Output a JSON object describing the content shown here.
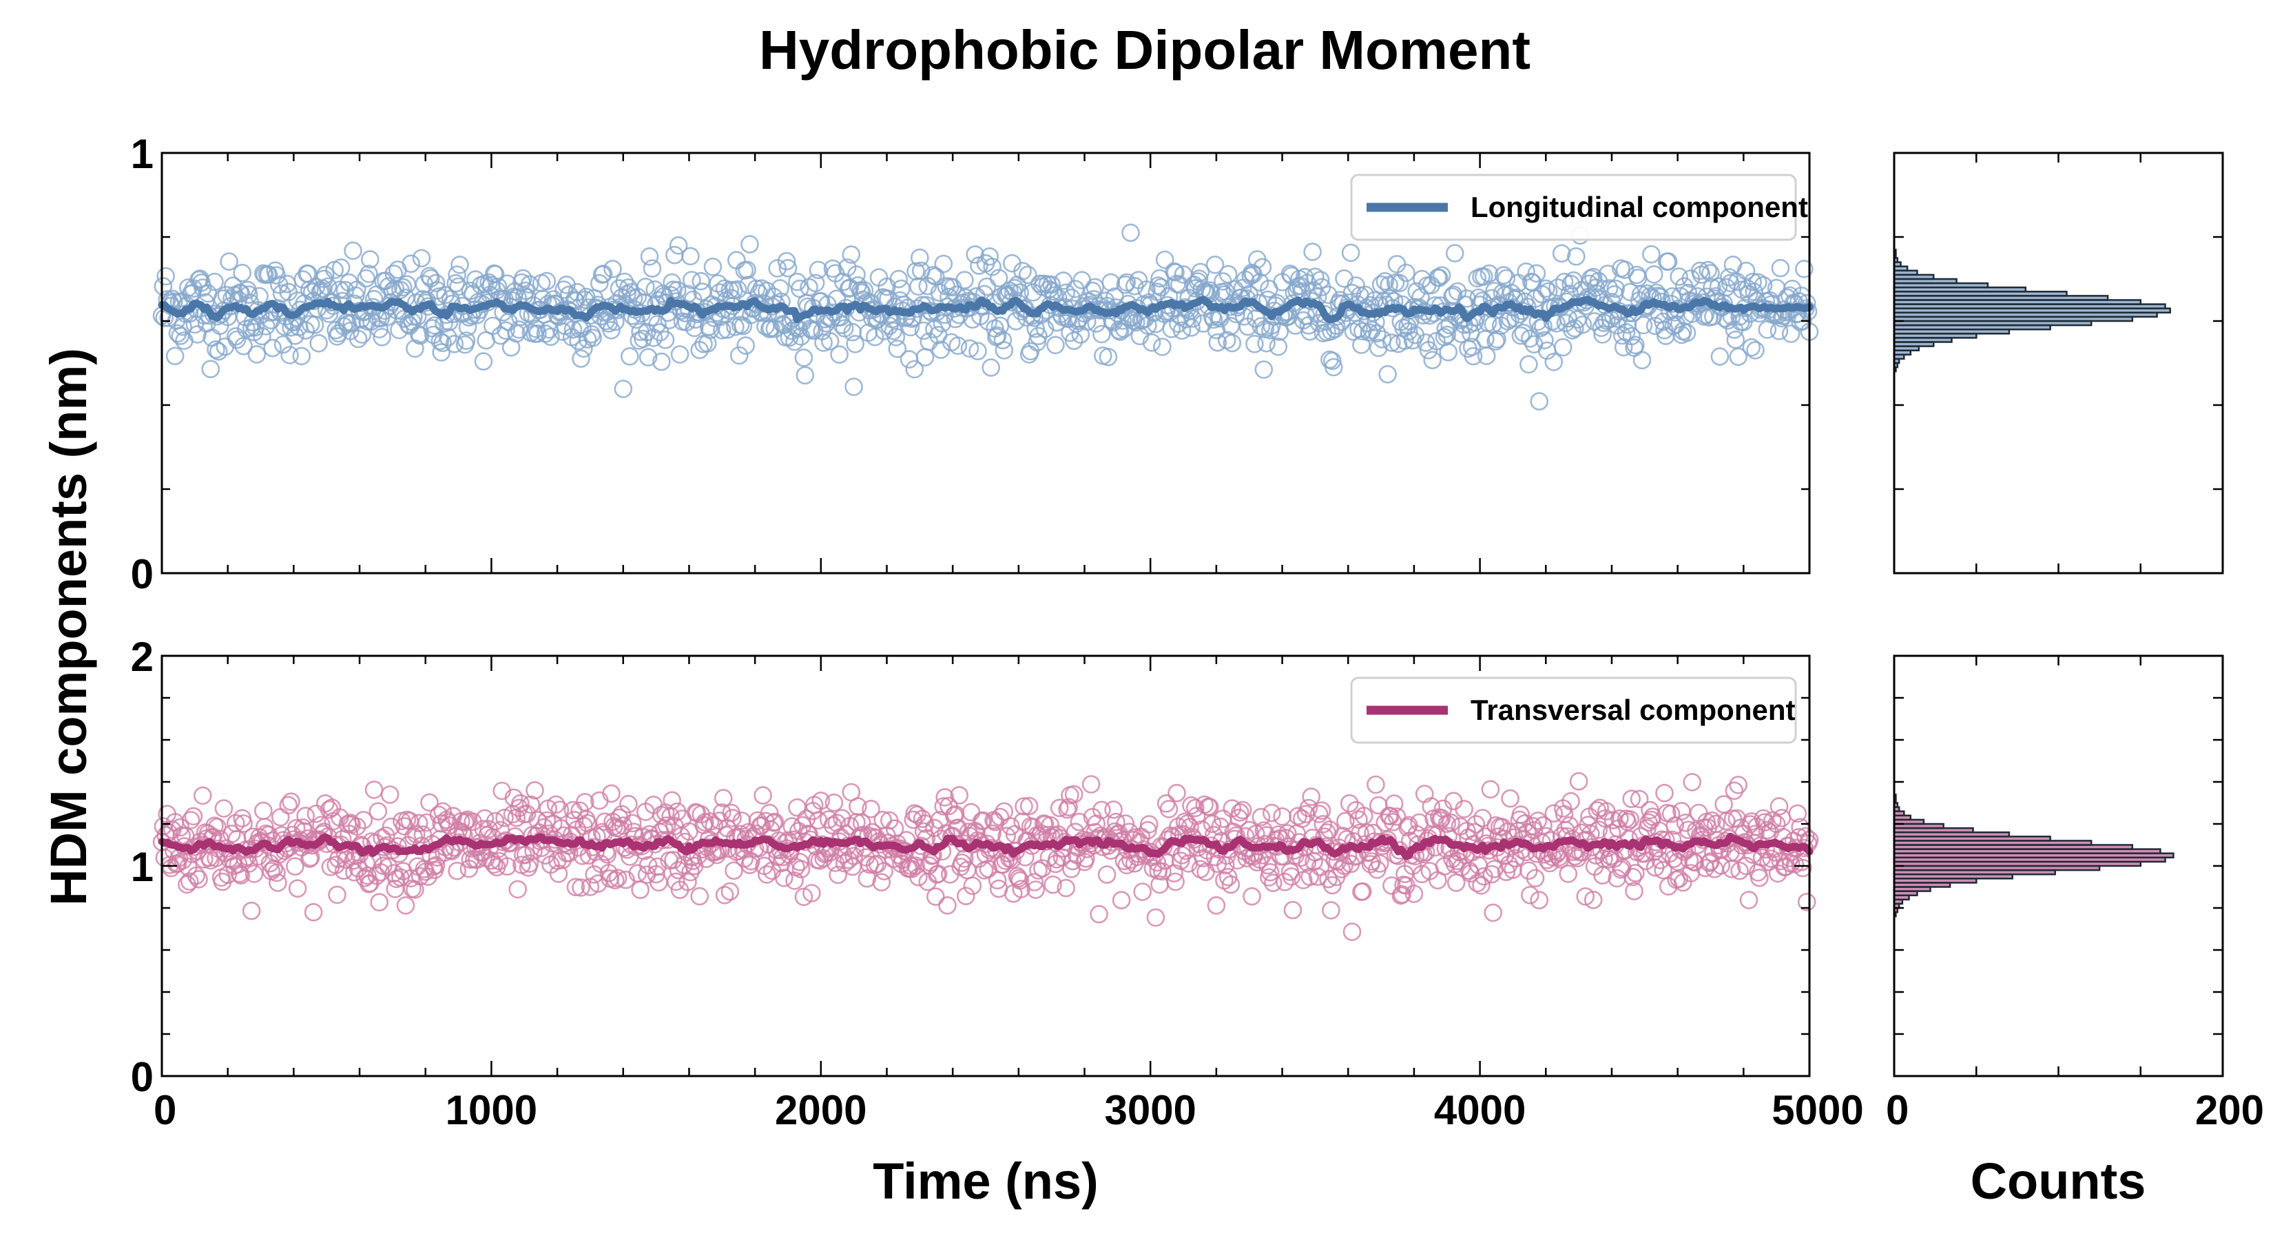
{
  "chart_data": {
    "type": "scatter",
    "title": "Hydrophobic Dipolar Moment",
    "ylabel": "HDM components (nm)",
    "xlabel": "Time (ns)",
    "hist_xlabel": "Counts",
    "xlim": [
      0,
      5000
    ],
    "x_ticks": [
      "0",
      "1000",
      "2000",
      "3000",
      "4000",
      "5000"
    ],
    "hist_xlim": [
      0,
      200
    ],
    "hist_x_ticks": [
      "0",
      "200"
    ],
    "point_step_ns": 4,
    "panels": [
      {
        "name": "Longitudinal component",
        "legend_label": "Longitudinal component",
        "color": "#4a77a8",
        "marker_color": "#86a8cc",
        "ylim": [
          0,
          1
        ],
        "y_ticks": [
          "0",
          "1"
        ],
        "mean": 0.63,
        "scatter_std": 0.055,
        "running_mean_std": 0.013,
        "histogram": {
          "bin_start": 0.48,
          "bin_width": 0.01,
          "counts": [
            1,
            2,
            3,
            6,
            10,
            15,
            24,
            35,
            50,
            70,
            95,
            120,
            145,
            160,
            168,
            165,
            150,
            130,
            105,
            80,
            57,
            38,
            24,
            14,
            8,
            4,
            2,
            1,
            1
          ]
        }
      },
      {
        "name": "Transversal component",
        "legend_label": "Transversal component",
        "color": "#a83272",
        "marker_color": "#cf7ea6",
        "ylim": [
          0,
          2
        ],
        "y_ticks": [
          "0",
          "1",
          "2"
        ],
        "mean": 1.1,
        "scatter_std": 0.11,
        "running_mean_std": 0.026,
        "histogram": {
          "bin_start": 0.76,
          "bin_width": 0.02,
          "counts": [
            1,
            2,
            3,
            5,
            9,
            14,
            22,
            34,
            50,
            72,
            98,
            125,
            150,
            165,
            170,
            162,
            145,
            120,
            95,
            70,
            48,
            30,
            18,
            10,
            6,
            3,
            2,
            1,
            1
          ]
        }
      }
    ]
  }
}
